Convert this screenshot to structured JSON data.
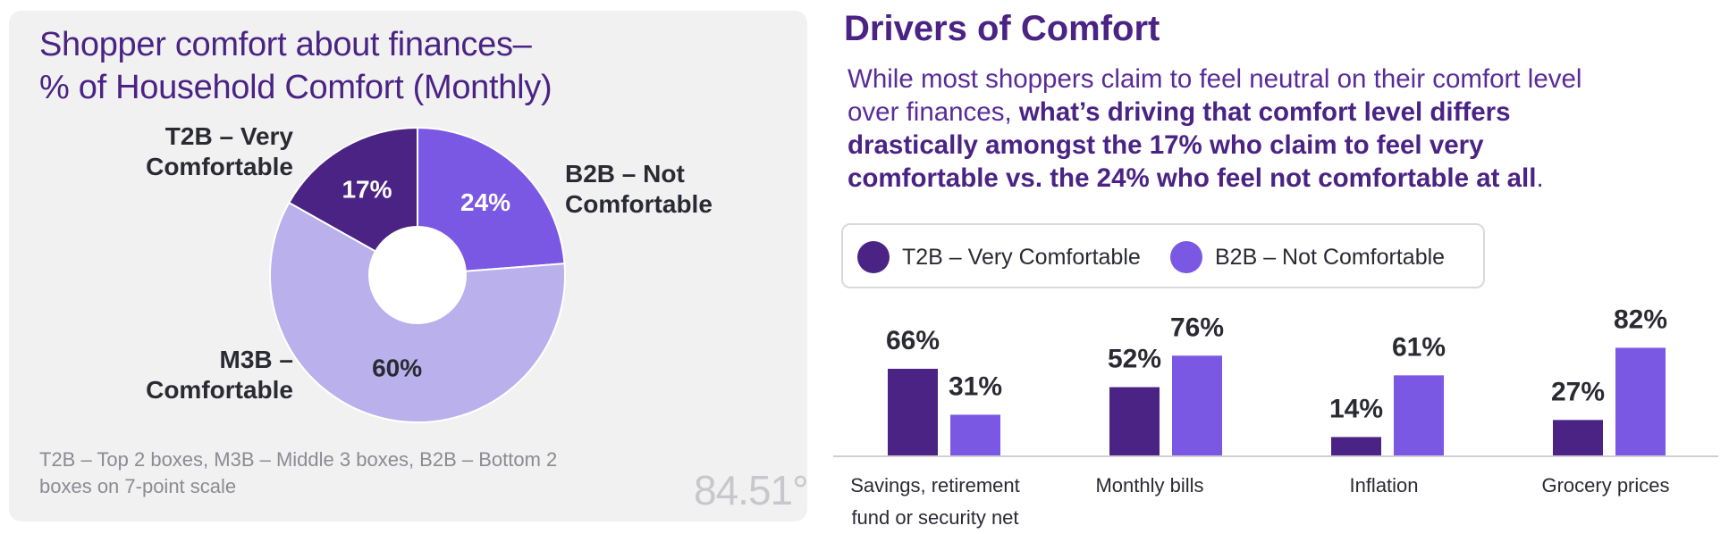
{
  "colors": {
    "t2b": "#4a2384",
    "m3b": "#b9b0ec",
    "b2b": "#7a58e4",
    "title": "#4a2384",
    "panel_bg": "#f1f1f2"
  },
  "left": {
    "title_line1": "Shopper comfort about finances–",
    "title_line2": "% of Household Comfort (Monthly)",
    "labels": {
      "t2b_line1": "T2B – Very",
      "t2b_line2": "Comfortable",
      "b2b_line1": "B2B – Not",
      "b2b_line2": "Comfortable",
      "m3b_line1": "M3B –",
      "m3b_line2": "Comfortable"
    },
    "footnote": "T2B – Top 2 boxes, M3B – Middle 3 boxes, B2B – Bottom 2 boxes on 7-point scale",
    "logo": "84.51°"
  },
  "right": {
    "title": "Drivers of Comfort",
    "intro_plain1": "While most shoppers claim to feel neutral on their comfort level over finances, ",
    "intro_bold": "what’s driving that comfort level differs drastically amongst the 17% who claim to feel very comfortable vs. the 24% who feel not comfortable at all",
    "intro_plain2": ".",
    "legend": {
      "t2b": "T2B – Very Comfortable",
      "b2b": "B2B – Not Comfortable"
    },
    "categories": [
      {
        "line1": "Savings, retirement",
        "line2": "fund or security net"
      },
      {
        "line1": "Monthly bills",
        "line2": ""
      },
      {
        "line1": "Inflation",
        "line2": ""
      },
      {
        "line1": "Grocery prices",
        "line2": ""
      }
    ]
  },
  "chart_data": [
    {
      "type": "pie",
      "title": "Shopper comfort about finances– % of Household Comfort (Monthly)",
      "donut": true,
      "categories": [
        "T2B – Very Comfortable",
        "B2B – Not Comfortable",
        "M3B – Comfortable"
      ],
      "values": [
        17,
        24,
        60
      ],
      "value_labels": [
        "17%",
        "24%",
        "60%"
      ]
    },
    {
      "type": "bar",
      "title": "Drivers of Comfort",
      "categories": [
        "Savings, retirement fund or security net",
        "Monthly bills",
        "Inflation",
        "Grocery prices"
      ],
      "series": [
        {
          "name": "T2B – Very Comfortable",
          "values": [
            66,
            52,
            14,
            27
          ],
          "labels": [
            "66%",
            "52%",
            "14%",
            "27%"
          ]
        },
        {
          "name": "B2B – Not Comfortable",
          "values": [
            31,
            76,
            61,
            82
          ],
          "labels": [
            "31%",
            "76%",
            "61%",
            "82%"
          ]
        }
      ],
      "ylim": [
        0,
        100
      ],
      "xlabel": "",
      "ylabel": ""
    }
  ]
}
